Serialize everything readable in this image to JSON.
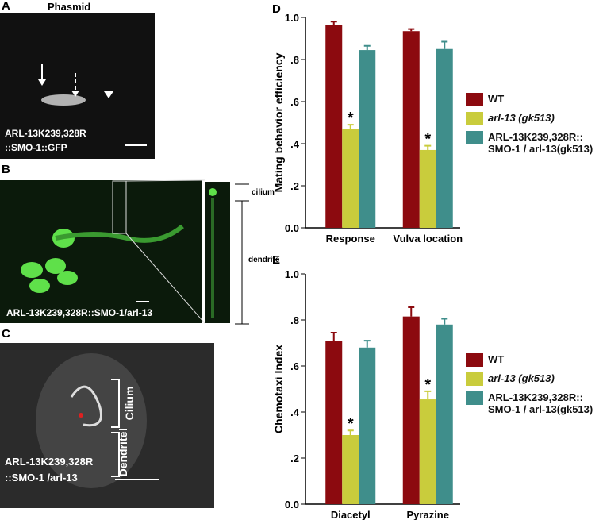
{
  "panels": {
    "a": {
      "letter": "A",
      "title": "Phasmid",
      "label_line1": "ARL-13K239,328R",
      "label_line2": "::SMO-1::GFP"
    },
    "b": {
      "letter": "B",
      "label": "ARL-13K239,328R::SMO-1/arl-13",
      "inset_top": "cilium",
      "inset_bottom": "dendrite"
    },
    "c": {
      "letter": "C",
      "label_line1": "ARL-13K239,328R",
      "label_line2": "::SMO-1 /arl-13",
      "bracket_top": "Cilium",
      "bracket_bottom": "Dendrite"
    }
  },
  "chart_data": [
    {
      "type": "bar",
      "panel": "D",
      "ylabel": "Mating behavior efficiency",
      "categories": [
        "Response",
        "Vulva location"
      ],
      "ylim": [
        0,
        1
      ],
      "yticks": [
        {
          "value": 0,
          "label": "0.0"
        },
        {
          "value": 0.2,
          "label": ".2"
        },
        {
          "value": 0.4,
          "label": ".4"
        },
        {
          "value": 0.6,
          "label": ".6"
        },
        {
          "value": 0.8,
          "label": ".8"
        },
        {
          "value": 1,
          "label": "1.0"
        }
      ],
      "series": [
        {
          "name": "WT",
          "color": "#8c0a0f",
          "values": [
            0.965,
            0.935
          ],
          "errors": [
            0.015,
            0.01
          ]
        },
        {
          "name": "arl-13 (gk513)",
          "color": "#c9cc3c",
          "values": [
            0.47,
            0.37
          ],
          "errors": [
            0.02,
            0.02
          ],
          "significance": [
            "*",
            "*"
          ]
        },
        {
          "name": "ARL-13K239,328R:: SMO-1 / arl-13(gk513)",
          "color": "#3f8e8b",
          "values": [
            0.845,
            0.85
          ],
          "errors": [
            0.02,
            0.035
          ]
        }
      ]
    },
    {
      "type": "bar",
      "panel": "E",
      "ylabel": "Chemotaxi Index",
      "categories": [
        "Diacetyl",
        "Pyrazine"
      ],
      "ylim": [
        0,
        1
      ],
      "yticks": [
        {
          "value": 0,
          "label": "0.0"
        },
        {
          "value": 0.2,
          "label": ".2"
        },
        {
          "value": 0.4,
          "label": ".4"
        },
        {
          "value": 0.6,
          "label": ".6"
        },
        {
          "value": 0.8,
          "label": ".8"
        },
        {
          "value": 1,
          "label": "1.0"
        }
      ],
      "series": [
        {
          "name": "WT",
          "color": "#8c0a0f",
          "values": [
            0.71,
            0.815
          ],
          "errors": [
            0.035,
            0.04
          ]
        },
        {
          "name": "arl-13 (gk513)",
          "color": "#c9cc3c",
          "values": [
            0.3,
            0.455
          ],
          "errors": [
            0.02,
            0.035
          ],
          "significance": [
            "*",
            "*"
          ]
        },
        {
          "name": "ARL-13K239,328R:: SMO-1 / arl-13(gk513)",
          "color": "#3f8e8b",
          "values": [
            0.68,
            0.78
          ],
          "errors": [
            0.03,
            0.025
          ]
        }
      ]
    }
  ]
}
